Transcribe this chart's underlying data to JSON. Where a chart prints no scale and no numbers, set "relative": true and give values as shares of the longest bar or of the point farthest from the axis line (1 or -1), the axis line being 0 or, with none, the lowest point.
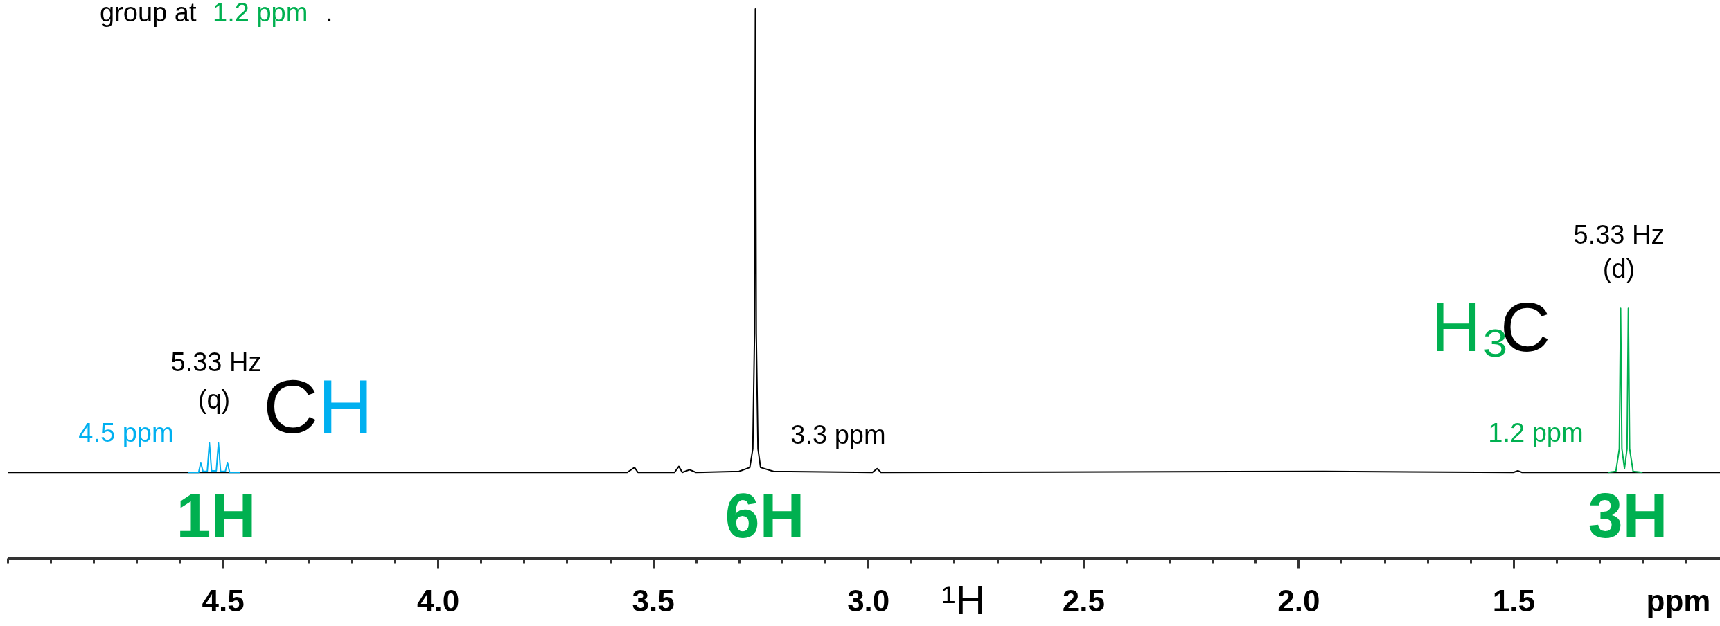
{
  "chart_data": {
    "type": "line",
    "relative": true,
    "xlabel": "ppm",
    "xlim": [
      5.0,
      1.02
    ],
    "xticks": [
      {
        "value": 5.0,
        "label": null
      },
      {
        "value": 4.9,
        "label": null
      },
      {
        "value": 4.8,
        "label": null
      },
      {
        "value": 4.7,
        "label": null
      },
      {
        "value": 4.6,
        "label": null
      },
      4.5,
      {
        "value": 4.4,
        "label": null
      },
      {
        "value": 4.3,
        "label": null
      },
      {
        "value": 4.2,
        "label": null
      },
      {
        "value": 4.1,
        "label": null
      },
      {
        "value": 4,
        "label": "4.0"
      },
      {
        "value": 3.9,
        "label": null
      },
      {
        "value": 3.8,
        "label": null
      },
      {
        "value": 3.7,
        "label": null
      },
      {
        "value": 3.6,
        "label": null
      },
      3.5,
      {
        "value": 3.4,
        "label": null
      },
      {
        "value": 3.3,
        "label": null
      },
      {
        "value": 3.2,
        "label": null
      },
      {
        "value": 3.1,
        "label": null
      },
      {
        "value": 3,
        "label": "3.0"
      },
      {
        "value": 2.9,
        "label": null
      },
      {
        "value": 2.8,
        "label": null
      },
      {
        "value": 2.7,
        "label": null
      },
      {
        "value": 2.6,
        "label": null
      },
      2.5,
      {
        "value": 2.4,
        "label": null
      },
      {
        "value": 2.3,
        "label": null
      },
      {
        "value": 2.2,
        "label": null
      },
      {
        "value": 2.1,
        "label": null
      },
      {
        "value": 2,
        "label": "2.0"
      },
      {
        "value": 1.9,
        "label": null
      },
      {
        "value": 1.8,
        "label": null
      },
      {
        "value": 1.7,
        "label": null
      },
      {
        "value": 1.6,
        "label": null
      },
      1.5,
      {
        "value": 1.4,
        "label": null
      },
      {
        "value": 1.3,
        "label": null
      },
      {
        "value": 1.2,
        "label": null
      },
      {
        "value": 1.1,
        "label": null
      }
    ],
    "marker": "none",
    "line_style": "solid",
    "series": [
      {
        "color": "#000000",
        "x": [
          5.0,
          3.56,
          3.543,
          3.535,
          3.45,
          3.44,
          3.432,
          3.415,
          3.4,
          3.3,
          3.275,
          3.268,
          3.264,
          3.262,
          3.26,
          3.256,
          3.25,
          3.22,
          2.99,
          2.979,
          2.97,
          1.94,
          1.5,
          1.49,
          1.48,
          1.02
        ],
        "values": [
          0.156,
          0.156,
          0.165,
          0.156,
          0.156,
          0.167,
          0.156,
          0.161,
          0.156,
          0.158,
          0.165,
          0.199,
          0.409,
          1,
          0.409,
          0.199,
          0.165,
          0.158,
          0.156,
          0.163,
          0.156,
          0.158,
          0.156,
          0.159,
          0.156,
          0.156
        ]
      },
      {
        "color": "#00b0f0",
        "x": [
          4.58,
          4.556,
          4.551,
          4.546,
          4.536,
          4.531,
          4.526,
          4.515,
          4.51,
          4.505,
          4.494,
          4.489,
          4.484,
          4.46
        ],
        "values": [
          0.156,
          0.156,
          0.174,
          0.158,
          0.158,
          0.21,
          0.159,
          0.159,
          0.21,
          0.158,
          0.158,
          0.174,
          0.156,
          0.156
        ]
      },
      {
        "color": "#00b050",
        "x": [
          1.28,
          1.262,
          1.254,
          1.251,
          1.248,
          1.242,
          1.236,
          1.233,
          1.23,
          1.222,
          1.2
        ],
        "values": [
          0.156,
          0.158,
          0.199,
          0.455,
          0.199,
          0.163,
          0.199,
          0.455,
          0.199,
          0.158,
          0.156
        ]
      }
    ],
    "annotations": [
      "group at",
      "1.2 ppm",
      ".",
      "5.33 Hz",
      "(q)",
      "4.5 ppm",
      "C",
      "H",
      "3.3 ppm",
      "5.33 Hz",
      "(d)",
      "H₃",
      "C",
      "1.2 ppm",
      "1H",
      "6H",
      "3H",
      "¹H"
    ]
  }
}
